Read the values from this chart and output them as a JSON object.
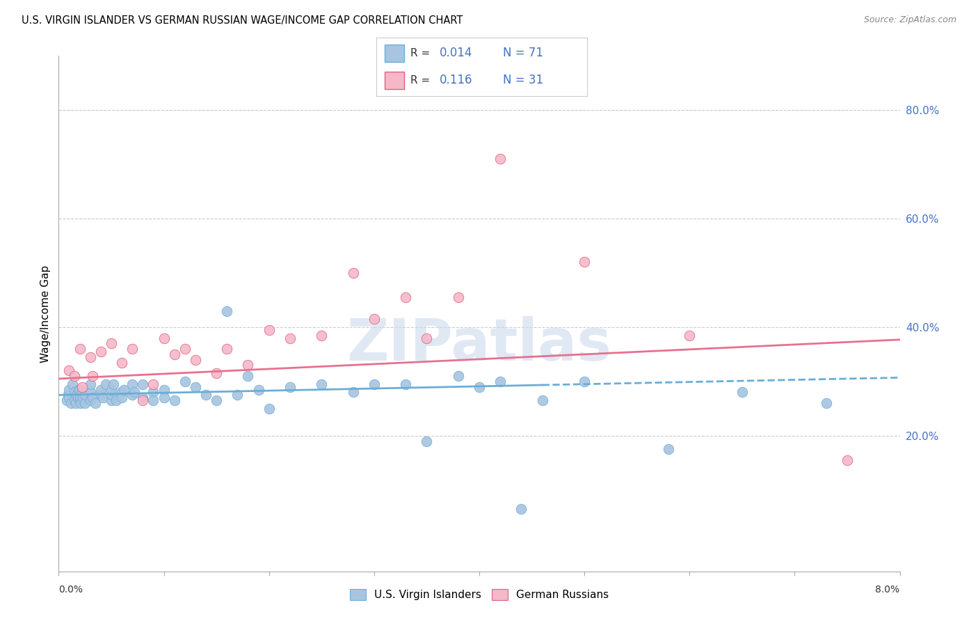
{
  "title": "U.S. VIRGIN ISLANDER VS GERMAN RUSSIAN WAGE/INCOME GAP CORRELATION CHART",
  "source": "Source: ZipAtlas.com",
  "ylabel": "Wage/Income Gap",
  "ytick_vals": [
    0.2,
    0.4,
    0.6,
    0.8
  ],
  "xlim": [
    0.0,
    0.08
  ],
  "ylim": [
    -0.05,
    0.9
  ],
  "legend_r1": "R = 0.014",
  "legend_n1": "N = 71",
  "legend_r2": "R = 0.116",
  "legend_n2": "N = 31",
  "blue_fill": "#a8c4e0",
  "blue_edge": "#6baed6",
  "pink_fill": "#f4b8c8",
  "pink_edge": "#e06080",
  "blue_trend_color": "#6baed6",
  "pink_trend_color": "#e87090",
  "background": "#ffffff",
  "grid_color": "#cccccc",
  "blue_trend_solid_end": 0.046,
  "blue_trend_intercept": 0.275,
  "blue_trend_slope": 0.4,
  "pink_trend_intercept": 0.305,
  "pink_trend_slope": 0.9,
  "us_x": [
    0.0008,
    0.0009,
    0.001,
    0.001,
    0.0012,
    0.0013,
    0.0015,
    0.0015,
    0.0016,
    0.0017,
    0.0018,
    0.0019,
    0.002,
    0.002,
    0.002,
    0.0021,
    0.0022,
    0.0023,
    0.0025,
    0.0025,
    0.003,
    0.003,
    0.003,
    0.0032,
    0.0035,
    0.004,
    0.004,
    0.0042,
    0.0045,
    0.005,
    0.005,
    0.005,
    0.0052,
    0.0055,
    0.006,
    0.006,
    0.0062,
    0.007,
    0.007,
    0.0072,
    0.008,
    0.008,
    0.009,
    0.009,
    0.01,
    0.01,
    0.011,
    0.012,
    0.013,
    0.014,
    0.015,
    0.016,
    0.017,
    0.018,
    0.019,
    0.02,
    0.022,
    0.025,
    0.028,
    0.03,
    0.033,
    0.035,
    0.038,
    0.04,
    0.042,
    0.044,
    0.046,
    0.05,
    0.058,
    0.065,
    0.073
  ],
  "us_y": [
    0.265,
    0.275,
    0.27,
    0.285,
    0.26,
    0.295,
    0.265,
    0.28,
    0.26,
    0.275,
    0.27,
    0.285,
    0.265,
    0.27,
    0.285,
    0.26,
    0.28,
    0.27,
    0.26,
    0.275,
    0.265,
    0.28,
    0.295,
    0.27,
    0.26,
    0.275,
    0.285,
    0.27,
    0.295,
    0.265,
    0.275,
    0.285,
    0.295,
    0.265,
    0.28,
    0.27,
    0.285,
    0.275,
    0.295,
    0.28,
    0.27,
    0.295,
    0.28,
    0.265,
    0.285,
    0.27,
    0.265,
    0.3,
    0.29,
    0.275,
    0.265,
    0.43,
    0.275,
    0.31,
    0.285,
    0.25,
    0.29,
    0.295,
    0.28,
    0.295,
    0.295,
    0.19,
    0.31,
    0.29,
    0.3,
    0.065,
    0.265,
    0.3,
    0.175,
    0.28,
    0.26
  ],
  "gr_x": [
    0.001,
    0.0015,
    0.002,
    0.0022,
    0.003,
    0.0032,
    0.004,
    0.005,
    0.006,
    0.007,
    0.008,
    0.009,
    0.01,
    0.011,
    0.012,
    0.013,
    0.015,
    0.016,
    0.018,
    0.02,
    0.022,
    0.025,
    0.028,
    0.03,
    0.033,
    0.035,
    0.038,
    0.042,
    0.05,
    0.06,
    0.075
  ],
  "gr_y": [
    0.32,
    0.31,
    0.36,
    0.29,
    0.345,
    0.31,
    0.355,
    0.37,
    0.335,
    0.36,
    0.265,
    0.295,
    0.38,
    0.35,
    0.36,
    0.34,
    0.315,
    0.36,
    0.33,
    0.395,
    0.38,
    0.385,
    0.5,
    0.415,
    0.455,
    0.38,
    0.455,
    0.71,
    0.52,
    0.385,
    0.155
  ],
  "watermark_text": "ZIPatlas",
  "watermark_color": "#c8d8ea",
  "watermark_alpha": 0.55
}
